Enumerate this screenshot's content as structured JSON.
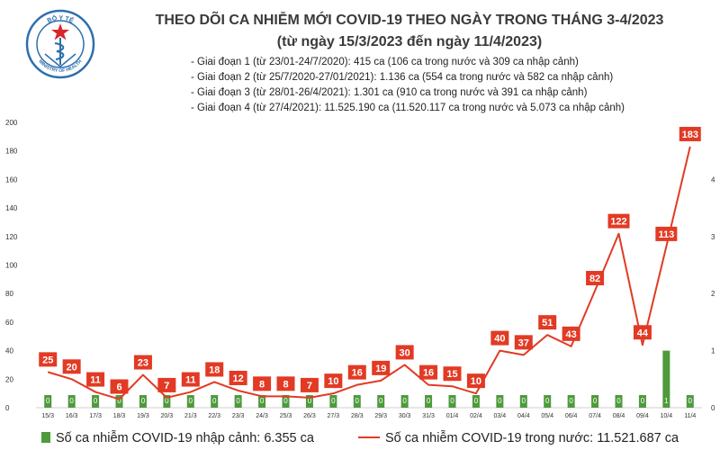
{
  "logo": {
    "top_text": "BỘ Y TẾ",
    "bottom_text": "MINISTRY OF HEALTH"
  },
  "title": {
    "line1": "THEO DÕI CA NHIỄM MỚI COVID-19 THEO NGÀY TRONG THÁNG 3-4/2023",
    "line2": "(từ ngày 15/3/2023 đến ngày 11/4/2023)"
  },
  "phases": [
    "- Giai đoạn 1 (từ 23/01-24/7/2020): 415 ca (106 ca trong nước và 309 ca nhập cảnh)",
    "- Giai đoạn 2 (từ 25/7/2020-27/01/2021): 1.136 ca (554 ca trong nước và 582 ca nhập cảnh)",
    "- Giai đoạn 3 (từ 28/01-26/4/2021): 1.301 ca (910 ca trong nước và 391 ca nhập cảnh)",
    "- Giai đoạn 4 (từ 27/4/2021): 11.525.190 ca (11.520.117 ca trong nước và 5.073 ca nhập cảnh)"
  ],
  "legend": {
    "bars": "Số ca nhiễm COVID-19 nhập cảnh: 6.355 ca",
    "line": "Số ca nhiễm COVID-19 trong nước: 11.521.687 ca"
  },
  "colors": {
    "line": "#e23a24",
    "bar": "#4e9a3c",
    "title": "#3a3a3a"
  },
  "chart_data": {
    "type": "bar+line",
    "categories": [
      "15/3",
      "16/3",
      "17/3",
      "18/3",
      "19/3",
      "20/3",
      "21/3",
      "22/3",
      "23/3",
      "24/3",
      "25/3",
      "26/3",
      "27/3",
      "28/3",
      "29/3",
      "30/3",
      "31/3",
      "01/4",
      "02/4",
      "03/4",
      "04/4",
      "05/4",
      "06/4",
      "07/4",
      "08/4",
      "09/4",
      "10/4",
      "11/4"
    ],
    "series": [
      {
        "kind": "line",
        "axis": "left",
        "values": [
          25,
          20,
          11,
          6,
          23,
          7,
          11,
          18,
          12,
          8,
          8,
          7,
          10,
          16,
          19,
          30,
          16,
          15,
          10,
          40,
          37,
          51,
          43,
          82,
          122,
          44,
          113,
          183
        ]
      },
      {
        "kind": "bar",
        "axis": "right",
        "values": [
          0,
          0,
          0,
          0,
          0,
          0,
          0,
          0,
          0,
          0,
          0,
          0,
          0,
          0,
          0,
          0,
          0,
          0,
          0,
          0,
          0,
          0,
          0,
          0,
          0,
          0,
          1,
          0
        ],
        "labels": [
          "0",
          "0",
          "0",
          "0",
          "0",
          "0",
          "0",
          "0",
          "0",
          "0",
          "0",
          "0",
          "0",
          "0",
          "0",
          "0",
          "0",
          "0",
          "0",
          "0",
          "0",
          "0",
          "0",
          "0",
          "0",
          "0",
          "1",
          "0"
        ]
      }
    ],
    "y_left": {
      "ticks": [
        "0",
        "20",
        "40",
        "60",
        "80",
        "100",
        "120",
        "140",
        "160",
        "180",
        "200"
      ],
      "range": [
        0,
        200
      ]
    },
    "y_right": {
      "ticks": [
        "0",
        "1",
        "2",
        "3",
        "4"
      ],
      "range": [
        0,
        5
      ]
    },
    "grid": false
  }
}
